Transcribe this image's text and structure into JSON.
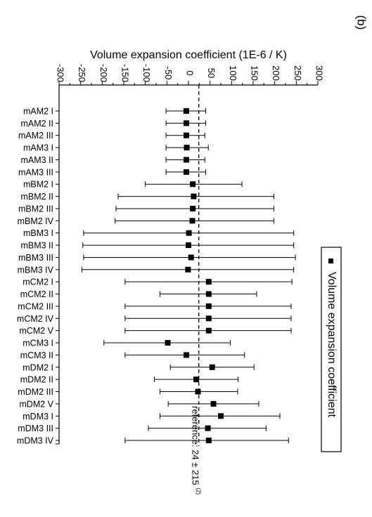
{
  "panel_label": "(b)",
  "chart_data": {
    "type": "scatter",
    "orientation": "rotated-90",
    "title": "",
    "xlabel": "Volume expansion coefficient (1E-6 / K)",
    "xlim": [
      -300,
      300
    ],
    "xticks": [
      "-300",
      "-250",
      "-200",
      "-150",
      "-100",
      "-50",
      "0",
      "50",
      "100",
      "150",
      "200",
      "250",
      "300"
    ],
    "legend": {
      "position": "right",
      "entries": [
        "Volume expansion coefficient"
      ]
    },
    "reference": {
      "value": 24,
      "label_main": "reference: 24 ± 215",
      "label_sup": "(2)",
      "low": -191,
      "high": 239
    },
    "categories": [
      "mAM2 I",
      "mAM2 II",
      "mAM2 III",
      "mAM3 I",
      "mAM3 II",
      "mAM3 III",
      "mBM2 I",
      "mBM2 II",
      "mBM2 III",
      "mBM2 IV",
      "mBM3 I",
      "mBM3 II",
      "mBM3 III",
      "mBM3 IV",
      "mCM2 I",
      "mCM2 II",
      "mCM2 III",
      "mCM2 IV",
      "mCM2 V",
      "mCM3 I",
      "mCM3 II",
      "mDM2 I",
      "mDM2 II",
      "mDM2 III",
      "mDM2 V",
      "mDM3 I",
      "mDM3 III",
      "mDM3 IV"
    ],
    "series": [
      {
        "name": "Volume expansion coefficient",
        "values": [
          -5,
          -5,
          -5,
          -4,
          -5,
          -5,
          10,
          12,
          10,
          9,
          1,
          0,
          6,
          -1,
          47,
          47,
          47,
          47,
          47,
          -48,
          -5,
          55,
          18,
          22,
          58,
          75,
          45,
          47
        ],
        "err_low": [
          -52,
          -52,
          -52,
          -52,
          -52,
          -52,
          -100,
          -163,
          -168,
          -170,
          -243,
          -245,
          -243,
          -247,
          -147,
          -66,
          -147,
          -147,
          -147,
          -196,
          -147,
          -42,
          -79,
          -66,
          -47,
          -66,
          -93,
          -147
        ],
        "err_high": [
          40,
          40,
          38,
          46,
          38,
          40,
          124,
          198,
          198,
          198,
          244,
          244,
          248,
          244,
          240,
          158,
          238,
          238,
          238,
          97,
          130,
          152,
          115,
          114,
          163,
          212,
          180,
          232
        ]
      }
    ]
  }
}
